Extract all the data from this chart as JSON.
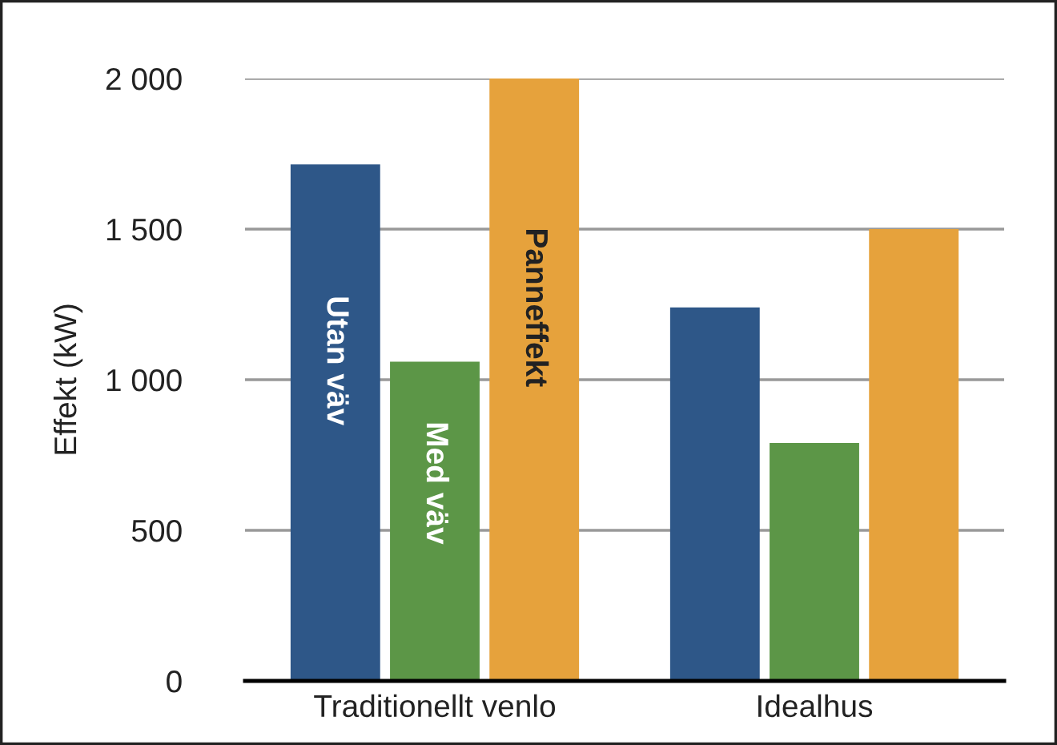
{
  "chart_data": {
    "type": "bar",
    "ylabel": "Effekt (kW)",
    "categories": [
      "Traditionellt venlo",
      "Idealhus"
    ],
    "series": [
      {
        "name": "Utan väv",
        "color": "#2e5788",
        "values": [
          1715,
          1240
        ]
      },
      {
        "name": "Med väv",
        "color": "#5c9647",
        "values": [
          1060,
          790
        ]
      },
      {
        "name": "Panneffekt",
        "color": "#e6a23c",
        "values": [
          2000,
          1500
        ]
      }
    ],
    "ylim": [
      0,
      2000
    ],
    "yticks": [
      0,
      500,
      {
        "value": 1000,
        "label": "1 000"
      },
      {
        "value": 1500,
        "label": "1 500"
      },
      {
        "value": 2000,
        "label": "2 000"
      }
    ],
    "grid": "y",
    "legend": false
  }
}
